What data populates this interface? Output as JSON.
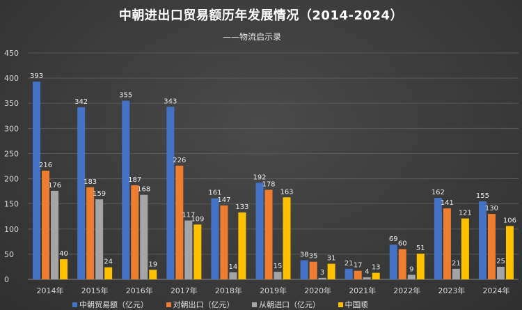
{
  "chart_data": {
    "type": "bar",
    "title": "中朝进出口贸易额历年发展情况（2014-2024）",
    "subtitle": "——物流启示录",
    "categories": [
      "2014年",
      "2015年",
      "2016年",
      "2017年",
      "2018年",
      "2019年",
      "2020年",
      "2021年",
      "2022年",
      "2023年",
      "2024年"
    ],
    "series": [
      {
        "name": "中朝贸易额（亿元）",
        "color": "#4472c4",
        "values": [
          393,
          342,
          355,
          343,
          161,
          192,
          38,
          21,
          69,
          162,
          155
        ]
      },
      {
        "name": "对朝出口（亿元）",
        "color": "#ed7d31",
        "values": [
          216,
          183,
          187,
          226,
          147,
          178,
          35,
          17,
          60,
          141,
          130
        ]
      },
      {
        "name": "从朝进口（亿元）",
        "color": "#a5a5a5",
        "values": [
          176,
          159,
          168,
          117,
          14,
          15,
          3,
          4,
          9,
          21,
          25
        ]
      },
      {
        "name": "中国顺",
        "color": "#ffc000",
        "values": [
          40,
          24,
          19,
          109,
          133,
          163,
          31,
          13,
          51,
          121,
          106
        ]
      }
    ],
    "ylim": [
      0,
      450
    ],
    "yticks": [
      0,
      50,
      100,
      150,
      200,
      250,
      300,
      350,
      400,
      450
    ],
    "grid": true,
    "legend_position": "bottom",
    "data_labels": true
  }
}
